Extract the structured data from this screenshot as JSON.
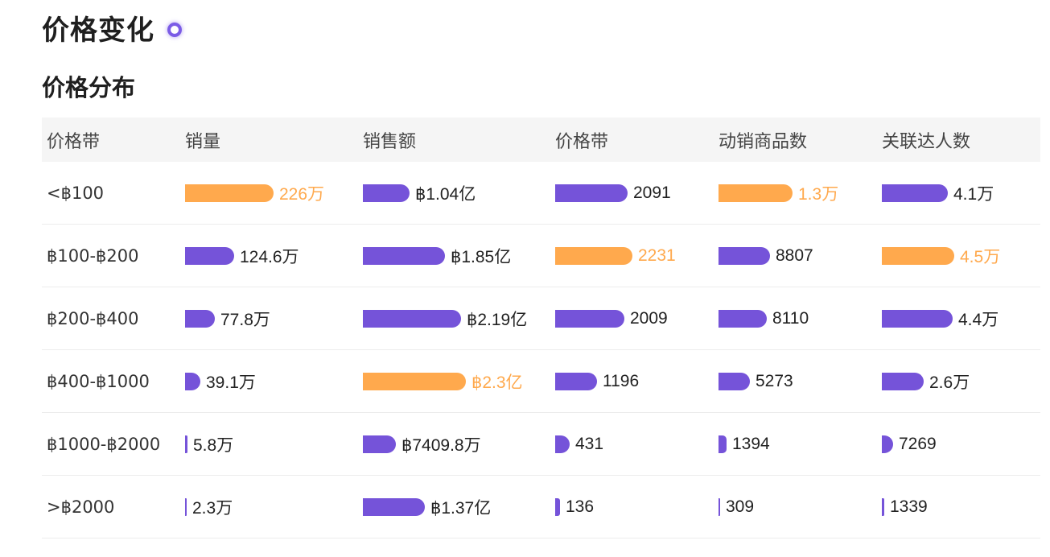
{
  "title": "价格变化",
  "section_title": "价格分布",
  "colors": {
    "bar": "#7553d9",
    "highlight": "#ffa94d",
    "dot": "#7b5ce6"
  },
  "columns": [
    "价格带",
    "销量",
    "销售额",
    "价格带",
    "动销商品数",
    "关联达人数"
  ],
  "rows": [
    {
      "range": "<฿100",
      "cells": [
        {
          "text": "226万",
          "level": 1.0,
          "highlight": true
        },
        {
          "text": "฿1.04亿",
          "level": 0.45,
          "highlight": false
        },
        {
          "text": "2091",
          "level": 0.94,
          "highlight": false
        },
        {
          "text": "1.3万",
          "level": 1.0,
          "highlight": true
        },
        {
          "text": "4.1万",
          "level": 0.91,
          "highlight": false
        }
      ]
    },
    {
      "range": "฿100-฿200",
      "cells": [
        {
          "text": "124.6万",
          "level": 0.55,
          "highlight": false
        },
        {
          "text": "฿1.85亿",
          "level": 0.8,
          "highlight": false
        },
        {
          "text": "2231",
          "level": 1.0,
          "highlight": true
        },
        {
          "text": "8807",
          "level": 0.7,
          "highlight": false
        },
        {
          "text": "4.5万",
          "level": 1.0,
          "highlight": true
        }
      ]
    },
    {
      "range": "฿200-฿400",
      "cells": [
        {
          "text": "77.8万",
          "level": 0.34,
          "highlight": false
        },
        {
          "text": "฿2.19亿",
          "level": 0.95,
          "highlight": false
        },
        {
          "text": "2009",
          "level": 0.9,
          "highlight": false
        },
        {
          "text": "8110",
          "level": 0.65,
          "highlight": false
        },
        {
          "text": "4.4万",
          "level": 0.98,
          "highlight": false
        }
      ]
    },
    {
      "range": "฿400-฿1000",
      "cells": [
        {
          "text": "39.1万",
          "level": 0.17,
          "highlight": false
        },
        {
          "text": "฿2.3亿",
          "level": 1.0,
          "highlight": true
        },
        {
          "text": "1196",
          "level": 0.54,
          "highlight": false
        },
        {
          "text": "5273",
          "level": 0.42,
          "highlight": false
        },
        {
          "text": "2.6万",
          "level": 0.58,
          "highlight": false
        }
      ]
    },
    {
      "range": "฿1000-฿2000",
      "cells": [
        {
          "text": "5.8万",
          "level": 0.026,
          "highlight": false
        },
        {
          "text": "฿7409.8万",
          "level": 0.32,
          "highlight": false
        },
        {
          "text": "431",
          "level": 0.19,
          "highlight": false
        },
        {
          "text": "1394",
          "level": 0.11,
          "highlight": false
        },
        {
          "text": "7269",
          "level": 0.16,
          "highlight": false
        }
      ]
    },
    {
      "range": ">฿2000",
      "cells": [
        {
          "text": "2.3万",
          "level": 0.01,
          "highlight": false
        },
        {
          "text": "฿1.37亿",
          "level": 0.6,
          "highlight": false
        },
        {
          "text": "136",
          "level": 0.06,
          "highlight": false
        },
        {
          "text": "309",
          "level": 0.02,
          "highlight": false
        },
        {
          "text": "1339",
          "level": 0.03,
          "highlight": false
        }
      ]
    }
  ]
}
